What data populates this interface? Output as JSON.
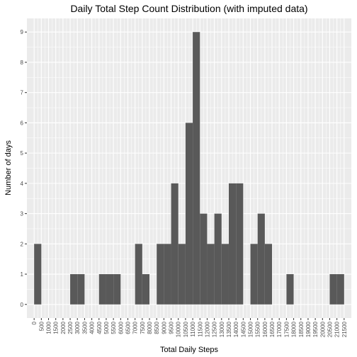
{
  "chart_data": {
    "type": "bar",
    "title": "Daily Total Step Count Distribution (with imputed data)",
    "xlabel": "Total Daily Steps",
    "ylabel": "Number of days",
    "bin_width": 500,
    "xlim": [
      0,
      21500
    ],
    "ylim": [
      0,
      9
    ],
    "x_ticks": [
      "0",
      "500",
      "1000",
      "1500",
      "2000",
      "2500",
      "3000",
      "3500",
      "4000",
      "4500",
      "5000",
      "5500",
      "6000",
      "6500",
      "7000",
      "7500",
      "8000",
      "8500",
      "9000",
      "9500",
      "10000",
      "10500",
      "11000",
      "11500",
      "12000",
      "12500",
      "13000",
      "13500",
      "14000",
      "14500",
      "15000",
      "15500",
      "16000",
      "16500",
      "17000",
      "17500",
      "18000",
      "18500",
      "19000",
      "19500",
      "20000",
      "20500",
      "21000",
      "21500"
    ],
    "y_ticks": [
      "0",
      "1",
      "2",
      "3",
      "4",
      "5",
      "6",
      "7",
      "8",
      "9"
    ],
    "bins": [
      {
        "start": 0,
        "count": 2
      },
      {
        "start": 2500,
        "count": 1
      },
      {
        "start": 3000,
        "count": 1
      },
      {
        "start": 4500,
        "count": 1
      },
      {
        "start": 5000,
        "count": 1
      },
      {
        "start": 5500,
        "count": 1
      },
      {
        "start": 7000,
        "count": 2
      },
      {
        "start": 7500,
        "count": 1
      },
      {
        "start": 8500,
        "count": 2
      },
      {
        "start": 9000,
        "count": 2
      },
      {
        "start": 9500,
        "count": 4
      },
      {
        "start": 10000,
        "count": 2
      },
      {
        "start": 10500,
        "count": 6
      },
      {
        "start": 11000,
        "count": 9
      },
      {
        "start": 11500,
        "count": 3
      },
      {
        "start": 12000,
        "count": 2
      },
      {
        "start": 12500,
        "count": 3
      },
      {
        "start": 13000,
        "count": 2
      },
      {
        "start": 13500,
        "count": 4
      },
      {
        "start": 14000,
        "count": 4
      },
      {
        "start": 14500,
        "count": 0
      },
      {
        "start": 15000,
        "count": 2
      },
      {
        "start": 15500,
        "count": 3
      },
      {
        "start": 16000,
        "count": 2
      },
      {
        "start": 17500,
        "count": 1
      },
      {
        "start": 20500,
        "count": 1
      },
      {
        "start": 21000,
        "count": 1
      }
    ],
    "grid": true,
    "colors": {
      "panel": "#ebebeb",
      "grid": "#ffffff",
      "bar": "#595959"
    }
  }
}
